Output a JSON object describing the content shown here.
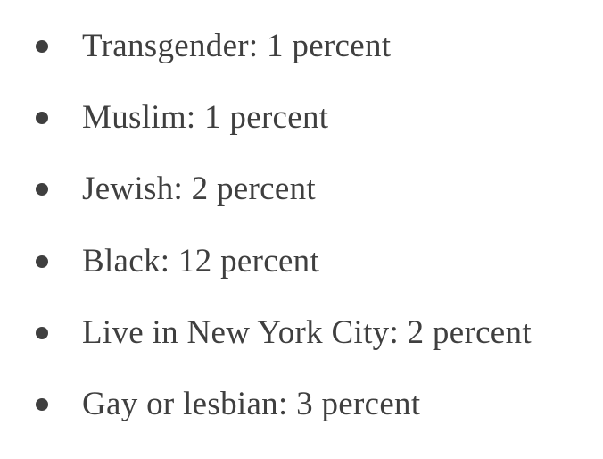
{
  "list": {
    "items": [
      "Transgender: 1 percent",
      "Muslim: 1 percent",
      "Jewish: 2 percent",
      "Black: 12 percent",
      "Live in New York City: 2 percent",
      "Gay or lesbian: 3 percent"
    ]
  }
}
